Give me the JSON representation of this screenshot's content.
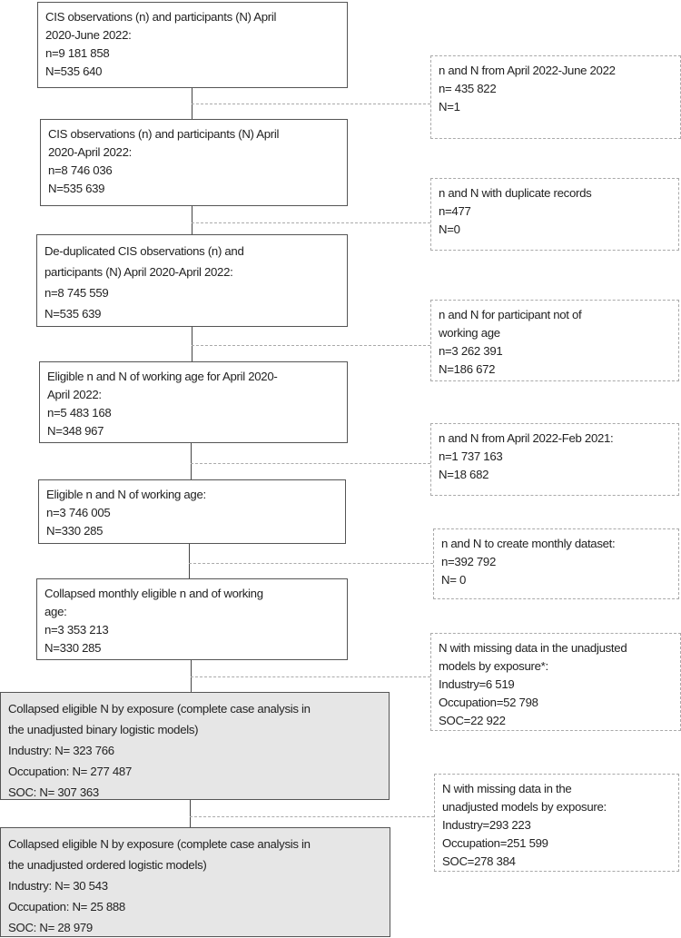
{
  "main_boxes": [
    {
      "lines": [
        "CIS observations (n) and participants (N) April",
        "2020-June 2022:",
        "n=9 181 858",
        "N=535 640"
      ]
    },
    {
      "lines": [
        "CIS observations (n) and participants (N) April",
        "2020-April 2022:",
        "n=8 746 036",
        "N=535 639"
      ]
    },
    {
      "lines": [
        "De-duplicated CIS observations (n) and",
        "participants (N) April 2020-April 2022:",
        "n=8 745 559",
        "N=535 639"
      ]
    },
    {
      "lines": [
        "Eligible n and N of working age for April 2020-",
        "April 2022:",
        "n=5 483 168",
        "N=348 967"
      ]
    },
    {
      "lines": [
        "Eligible n and N of working age:",
        "n=3 746 005",
        "N=330 285"
      ]
    },
    {
      "lines": [
        "Collapsed monthly eligible n and of working",
        "age:",
        "n=3 353 213",
        "N=330 285"
      ]
    },
    {
      "lines": [
        "Collapsed eligible N by exposure (complete case analysis in",
        "the unadjusted binary logistic models)",
        "Industry: N= 323 766",
        "Occupation: N= 277 487",
        "SOC: N= 307 363"
      ]
    },
    {
      "lines": [
        "Collapsed eligible N by exposure (complete case analysis in",
        "the unadjusted ordered logistic models)",
        "Industry: N= 30 543",
        "Occupation: N= 25 888",
        "SOC: N= 28 979"
      ]
    }
  ],
  "exclusion_boxes": [
    {
      "lines": [
        "n and N from April 2022-June 2022",
        "n= 435 822",
        "N=1"
      ]
    },
    {
      "lines": [
        "n and N with duplicate records",
        "n=477",
        "N=0"
      ]
    },
    {
      "lines": [
        "n and N for participant not of",
        "working age",
        "n=3 262 391",
        "N=186 672"
      ]
    },
    {
      "lines": [
        "n and N from April 2022-Feb 2021:",
        "n=1 737 163",
        "N=18 682"
      ]
    },
    {
      "lines": [
        "n and N to create monthly dataset:",
        "n=392 792",
        "N= 0"
      ]
    },
    {
      "lines": [
        "N with missing data in the unadjusted",
        "models by exposure*:",
        "Industry=6 519",
        "Occupation=52 798",
        "SOC=22 922"
      ]
    },
    {
      "lines": [
        "N with missing data in the",
        "unadjusted models by exposure:",
        "Industry=293 223",
        "Occupation=251 599",
        "SOC=278 384"
      ]
    }
  ],
  "colors": {
    "final_box_fill": "#e6e6e6",
    "border": "#555555",
    "dashed": "#aaaaaa"
  }
}
